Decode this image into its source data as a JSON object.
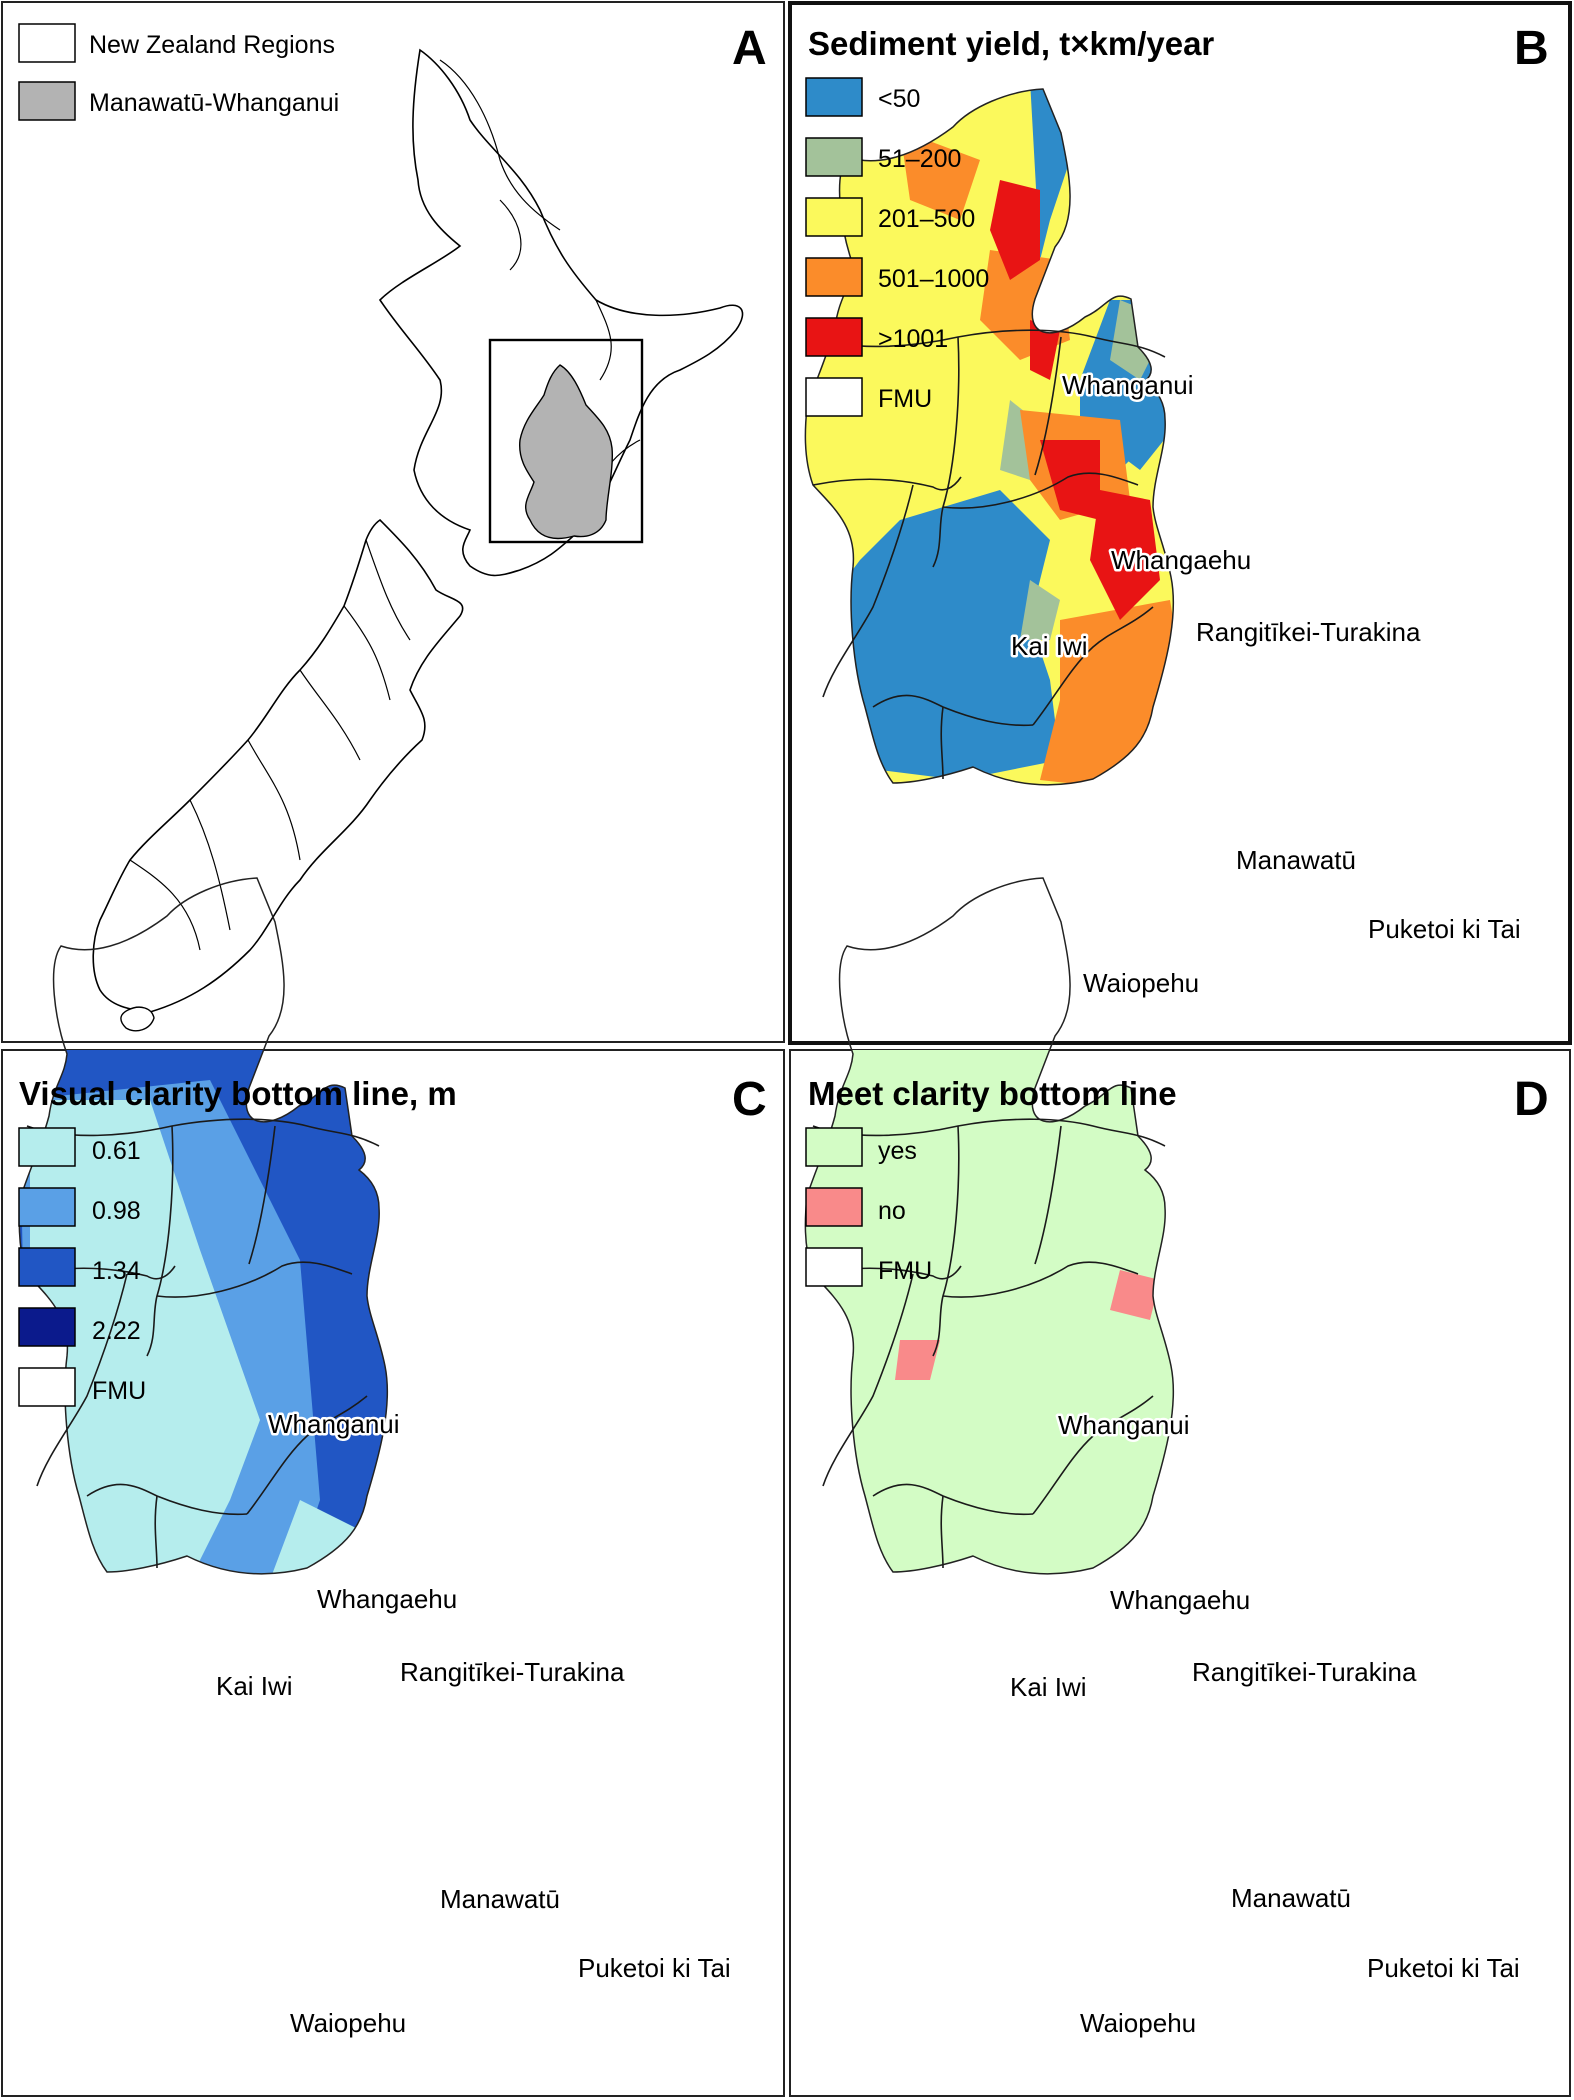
{
  "panels": {
    "A": {
      "letter": "A",
      "legend": [
        {
          "label": "New Zealand Regions",
          "color": "#ffffff"
        },
        {
          "label": "Manawatū-Whanganui",
          "color": "#b3b3b3"
        }
      ]
    },
    "B": {
      "letter": "B",
      "title": "Sediment yield, t×km/year",
      "legend": [
        {
          "label": "<50",
          "color": "#2e8bc9"
        },
        {
          "label": "51–200",
          "color": "#a3c29a"
        },
        {
          "label": "201–500",
          "color": "#fbf95c"
        },
        {
          "label": "501–1000",
          "color": "#fb8c2a"
        },
        {
          "label": ">1001",
          "color": "#e81414"
        },
        {
          "label": "FMU",
          "color": "#ffffff"
        }
      ]
    },
    "C": {
      "letter": "C",
      "title": "Visual clarity bottom line, m",
      "legend": [
        {
          "label": "0.61",
          "color": "#b5eded"
        },
        {
          "label": "0.98",
          "color": "#5aa0e6"
        },
        {
          "label": "1.34",
          "color": "#2156c4"
        },
        {
          "label": "2.22",
          "color": "#0b1a8c"
        },
        {
          "label": "FMU",
          "color": "#ffffff"
        }
      ]
    },
    "D": {
      "letter": "D",
      "title": "Meet clarity bottom line",
      "legend": [
        {
          "label": "yes",
          "color": "#d3fcc5"
        },
        {
          "label": "no",
          "color": "#f98a8a"
        },
        {
          "label": "FMU",
          "color": "#ffffff"
        }
      ]
    }
  },
  "fmu_labels": [
    "Whanganui",
    "Whangaehu",
    "Kai Iwi",
    "Rangitīkei-Turakina",
    "Manawatū",
    "Puketoi ki Tai",
    "Waiopehu"
  ]
}
